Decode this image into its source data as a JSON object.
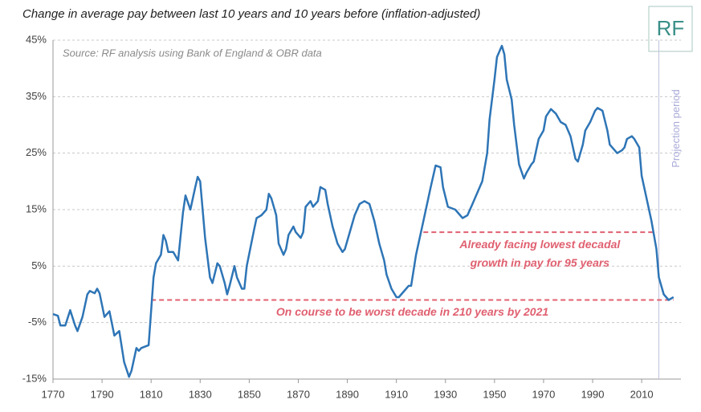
{
  "chart_data": {
    "type": "line",
    "title": "Change in average pay between last 10 years and 10 years before (inflation-adjusted)",
    "source": "Source: RF analysis using Bank of England & OBR data",
    "logo": "RF",
    "x": [
      1770,
      1772,
      1773,
      1775,
      1777,
      1779,
      1780,
      1782,
      1784,
      1785,
      1787,
      1788,
      1789,
      1791,
      1793,
      1795,
      1797,
      1799,
      1801,
      1802,
      1804,
      1805,
      1806,
      1809,
      1811,
      1812,
      1814,
      1815,
      1816,
      1817,
      1819,
      1821,
      1823,
      1824,
      1826,
      1828,
      1829,
      1830,
      1832,
      1834,
      1835,
      1837,
      1838,
      1840,
      1841,
      1842,
      1844,
      1845,
      1847,
      1848,
      1849,
      1852,
      1853,
      1855,
      1857,
      1858,
      1859,
      1861,
      1862,
      1864,
      1865,
      1866,
      1868,
      1869,
      1871,
      1872,
      1873,
      1875,
      1876,
      1878,
      1879,
      1881,
      1882,
      1884,
      1886,
      1888,
      1889,
      1891,
      1893,
      1895,
      1897,
      1899,
      1901,
      1903,
      1905,
      1906,
      1908,
      1910,
      1911,
      1913,
      1915,
      1916,
      1918,
      1921,
      1923,
      1924,
      1926,
      1928,
      1929,
      1931,
      1934,
      1935,
      1937,
      1939,
      1941,
      1944,
      1945,
      1947,
      1948,
      1950,
      1951,
      1953,
      1954,
      1955,
      1957,
      1958,
      1960,
      1962,
      1963,
      1965,
      1966,
      1968,
      1970,
      1971,
      1973,
      1975,
      1977,
      1979,
      1981,
      1983,
      1984,
      1986,
      1987,
      1989,
      1991,
      1992,
      1994,
      1996,
      1997,
      1999,
      2000,
      2002,
      2003,
      2004,
      2006,
      2007,
      2009,
      2010,
      2012,
      2014,
      2016,
      2017,
      2019,
      2021,
      2023
    ],
    "values": [
      -3.5,
      -3.8,
      -5.5,
      -5.5,
      -2.8,
      -5.5,
      -6.5,
      -4,
      0,
      0.6,
      0.2,
      1,
      0.2,
      -4,
      -3,
      -7.3,
      -6.5,
      -12,
      -14.6,
      -13.5,
      -9.5,
      -10,
      -9.5,
      -9,
      3,
      5.5,
      7,
      10.5,
      9.5,
      7.5,
      7.5,
      6,
      14.5,
      17.5,
      15,
      19,
      20.8,
      20,
      10,
      3,
      2,
      5.5,
      5,
      2,
      0,
      1.5,
      5,
      3,
      1,
      1,
      5,
      11.5,
      13.5,
      14,
      15,
      17.8,
      17,
      14,
      9,
      7,
      8,
      10.5,
      12,
      11,
      10,
      11,
      15.5,
      16.5,
      15.5,
      16.5,
      19,
      18.5,
      16,
      12,
      9,
      7.5,
      8,
      11,
      14,
      16,
      16.5,
      16,
      13,
      9,
      6,
      3.5,
      1,
      -0.5,
      -0.5,
      0.5,
      1.5,
      1.5,
      7,
      13,
      17,
      19,
      22.8,
      22.5,
      19,
      15.5,
      15,
      14.5,
      13.5,
      14,
      16,
      19,
      20,
      25,
      31,
      38,
      42,
      44,
      42.5,
      38,
      34.5,
      30,
      23,
      20.5,
      21.5,
      23,
      23.5,
      27.5,
      29,
      31.5,
      32.8,
      32,
      30.5,
      30,
      28,
      24,
      23.5,
      26.5,
      29,
      30.5,
      32.5,
      33,
      32.5,
      29,
      26.5,
      25.5,
      25,
      25.5,
      26,
      27.5,
      28,
      27.5,
      26,
      21,
      17,
      13,
      8,
      3,
      0,
      -1,
      -0.5
    ],
    "color": "#2e75b6",
    "xlim": [
      1770,
      2026
    ],
    "xticks": [
      1770,
      1790,
      1810,
      1830,
      1850,
      1870,
      1890,
      1910,
      1930,
      1950,
      1970,
      1990,
      2010
    ],
    "ylim": [
      -15,
      45
    ],
    "yticks": [
      {
        "value": -15,
        "label": "-15%"
      },
      {
        "value": -5,
        "label": "-5%"
      },
      {
        "value": 5,
        "label": "5%"
      },
      {
        "value": 15,
        "label": "15%"
      },
      {
        "value": 25,
        "label": "25%"
      },
      {
        "value": 35,
        "label": "35%"
      },
      {
        "value": 45,
        "label": "45%"
      }
    ],
    "grid": true,
    "projection_start": 2017,
    "projection_label": "Projection period",
    "reference_lines": [
      {
        "y": 11,
        "x": [
          1921,
          2016
        ],
        "color": "#e06070",
        "text": [
          "Already facing lowest decadal",
          "growth in pay for 95 years"
        ]
      },
      {
        "y": -1,
        "x": [
          1810,
          2023
        ],
        "color": "#e06070",
        "text": [
          "On course to be worst decade in 210 years by 2021"
        ]
      }
    ]
  }
}
